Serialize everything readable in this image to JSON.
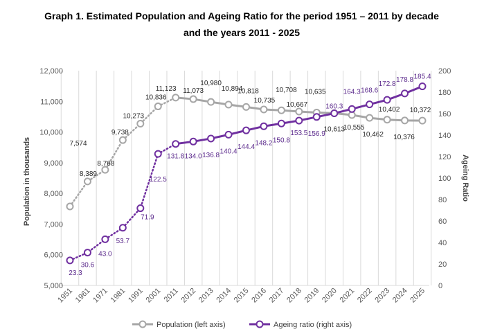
{
  "chart_data": {
    "type": "line",
    "title_line1": "Graph 1. Estimated Population and Ageing Ratio for the period 1951 – 2011 by decade",
    "title_line2": "and the years 2011 - 2025",
    "categories": [
      "1951",
      "1961",
      "1971",
      "1981",
      "1991",
      "2001",
      "2011",
      "2012",
      "2013",
      "2014",
      "2015",
      "2016",
      "2017",
      "2018",
      "2019",
      "2020",
      "2021",
      "2022",
      "2023",
      "2024",
      "2025"
    ],
    "ylabel_left": "Population in thousands",
    "ylabel_right": "Ageing Ratio",
    "ylim_left": [
      5000,
      12000
    ],
    "yticks_left": [
      "5,000",
      "6,000",
      "7,000",
      "8,000",
      "9,000",
      "10,000",
      "11,000",
      "12,000"
    ],
    "ylim_right": [
      0,
      200
    ],
    "yticks_right": [
      "0",
      "20",
      "40",
      "60",
      "80",
      "100",
      "120",
      "140",
      "160",
      "180",
      "200"
    ],
    "grid": "vertical",
    "legend_position": "bottom",
    "series": [
      {
        "name": "Population (left axis)",
        "axis": "left",
        "color": "#a6a6a6",
        "values": [
          7574,
          8389,
          8768,
          9738,
          10273,
          10836,
          11123,
          11073,
          10980,
          10894,
          10818,
          10735,
          10708,
          10667,
          10635,
          10613,
          10555,
          10462,
          10402,
          10376,
          10372
        ],
        "labels": [
          "7,574",
          "8,389",
          "8,768",
          "9,738",
          "10,273",
          "10,836",
          "11,123",
          "11,073",
          "10,980",
          "10,894",
          "10,818",
          "10,735",
          "10,708",
          "10,667",
          "10,635",
          "10,613",
          "10,555",
          "10,462",
          "10,402",
          "10,376",
          "10,372"
        ]
      },
      {
        "name": "Ageing ratio (right axis)",
        "axis": "right",
        "color": "#7030a0",
        "values": [
          23.3,
          30.6,
          43.0,
          53.7,
          71.9,
          122.5,
          131.8,
          134.0,
          136.8,
          140.4,
          144.4,
          148.2,
          150.8,
          153.5,
          156.9,
          160.3,
          164.3,
          168.6,
          172.8,
          178.8,
          185.4
        ],
        "labels": [
          "23.3",
          "30.6",
          "43.0",
          "53.7",
          "71.9",
          "122.5",
          "131.8",
          "134.0",
          "136.8",
          "140.4",
          "144.4",
          "148.2",
          "150.8",
          "153.5",
          "156.9",
          "160.3",
          "164.3",
          "168.6",
          "172.8",
          "178.8",
          "185.4"
        ]
      }
    ]
  }
}
